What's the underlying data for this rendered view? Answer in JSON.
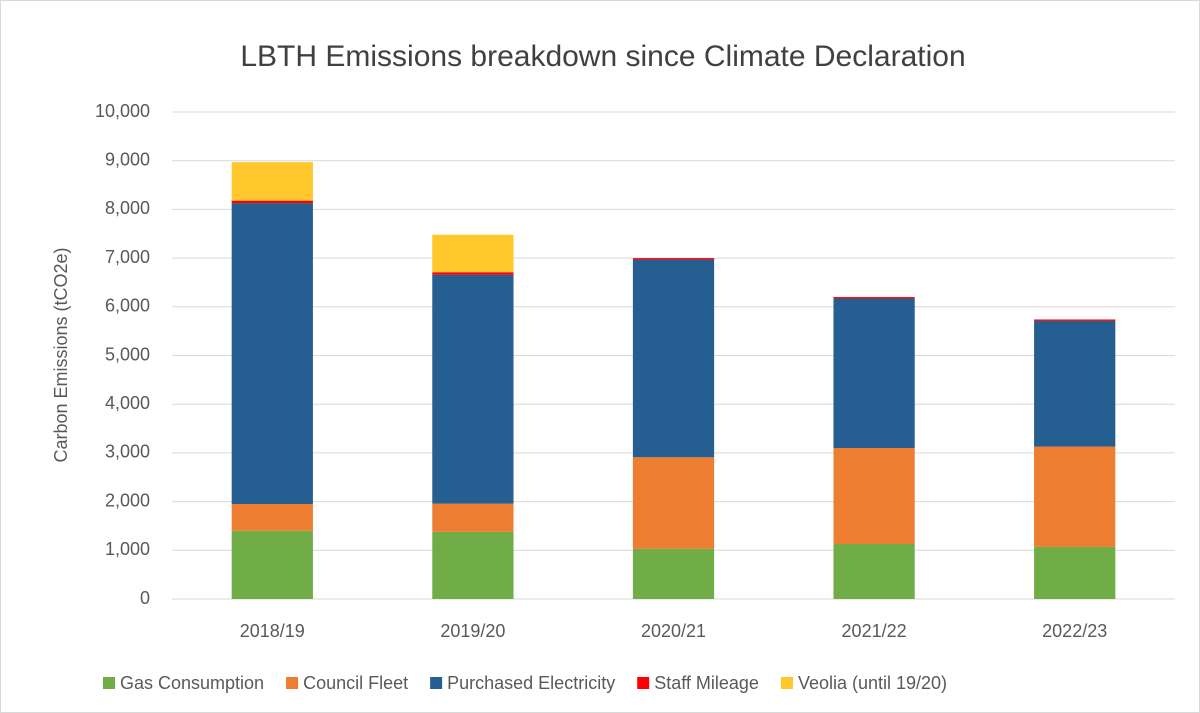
{
  "chart_data": {
    "type": "stacked_bar",
    "title": "LBTH Emissions breakdown since Climate Declaration",
    "y_label": "Carbon Emissions (tCO2e)",
    "categories": [
      "2018/19",
      "2019/20",
      "2020/21",
      "2021/22",
      "2022/23"
    ],
    "series": [
      {
        "name": "Gas Consumption",
        "color": "#70ad47",
        "values": [
          1400,
          1380,
          1030,
          1130,
          1070
        ]
      },
      {
        "name": "Council Fleet",
        "color": "#ed7d31",
        "values": [
          550,
          580,
          1880,
          1970,
          2060
        ]
      },
      {
        "name": "Purchased Electricity",
        "color": "#255e91",
        "values": [
          6180,
          4700,
          4060,
          3070,
          2580
        ]
      },
      {
        "name": "Staff Mileage",
        "color": "#ff0000",
        "values": [
          50,
          50,
          30,
          30,
          30
        ]
      },
      {
        "name": "Veolia (until 19/20)",
        "color": "#ffc72c",
        "values": [
          790,
          770,
          null,
          null,
          null
        ]
      }
    ],
    "ylim": [
      0,
      10000
    ],
    "yticks": [
      0,
      {
        "value": 1000,
        "label": "1,000"
      },
      {
        "value": 2000,
        "label": "2,000"
      },
      {
        "value": 3000,
        "label": "3,000"
      },
      {
        "value": 4000,
        "label": "4,000"
      },
      {
        "value": 5000,
        "label": "5,000"
      },
      {
        "value": 6000,
        "label": "6,000"
      },
      {
        "value": 7000,
        "label": "7,000"
      },
      {
        "value": 8000,
        "label": "8,000"
      },
      {
        "value": 9000,
        "label": "9,000"
      },
      {
        "value": 10000,
        "label": "10,000"
      }
    ],
    "grid": true,
    "legend": "bottom"
  }
}
